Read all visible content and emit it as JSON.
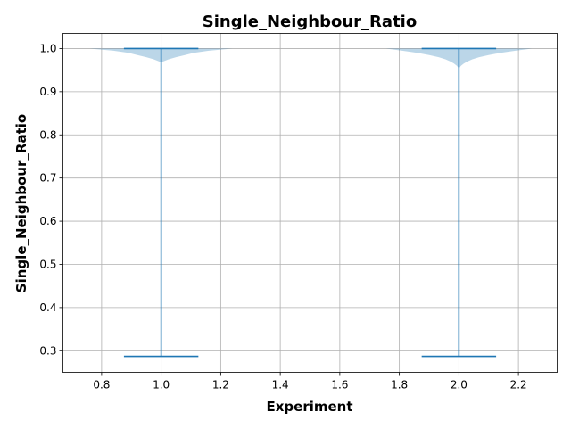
{
  "chart_data": {
    "type": "violin",
    "title": "Single_Neighbour_Ratio",
    "xlabel": "Experiment",
    "ylabel": "Single_Neighbour_Ratio",
    "xlim": [
      0.67,
      2.33
    ],
    "ylim": [
      0.25,
      1.035
    ],
    "xticks": [
      0.8,
      1.0,
      1.2,
      1.4,
      1.6,
      1.8,
      2.0,
      2.2
    ],
    "xtick_labels": [
      "0.8",
      "1.0",
      "1.2",
      "1.4",
      "1.6",
      "1.8",
      "2.0",
      "2.2"
    ],
    "yticks": [
      0.3,
      0.4,
      0.5,
      0.6,
      0.7,
      0.8,
      0.9,
      1.0
    ],
    "ytick_labels": [
      "0.3",
      "0.4",
      "0.5",
      "0.6",
      "0.7",
      "0.8",
      "0.9",
      "1.0"
    ],
    "grid": true,
    "colors": {
      "violin_fill": "#1f77b4",
      "violin_alpha": 0.3,
      "stats_line": "#1f77b4"
    },
    "series": [
      {
        "position": 1,
        "min": 0.287,
        "max": 1.0,
        "density_profile": [
          [
            1.0,
            0.24
          ],
          [
            0.995,
            0.16
          ],
          [
            0.99,
            0.11
          ],
          [
            0.985,
            0.08
          ],
          [
            0.98,
            0.05
          ],
          [
            0.975,
            0.025
          ],
          [
            0.97,
            0.006
          ],
          [
            0.968,
            0.0
          ]
        ]
      },
      {
        "position": 2,
        "min": 0.287,
        "max": 1.0,
        "density_profile": [
          [
            1.0,
            0.245
          ],
          [
            0.995,
            0.19
          ],
          [
            0.99,
            0.14
          ],
          [
            0.985,
            0.1
          ],
          [
            0.98,
            0.068
          ],
          [
            0.975,
            0.045
          ],
          [
            0.97,
            0.028
          ],
          [
            0.965,
            0.016
          ],
          [
            0.96,
            0.007
          ],
          [
            0.954,
            0.0
          ]
        ]
      }
    ],
    "whisker_halfwidth": 0.125
  }
}
